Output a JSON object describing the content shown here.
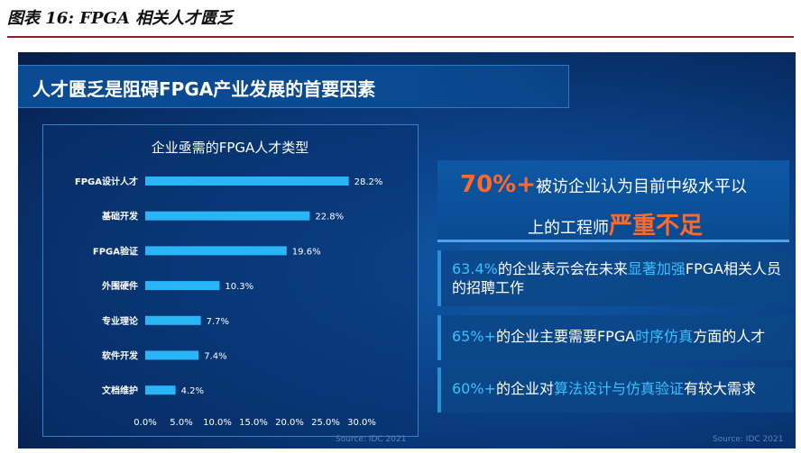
{
  "caption": "图表 16: FPGA 相关人才匮乏",
  "slide_title": "人才匮乏是阻碍FPGA产业发展的首要因素",
  "chart_data": {
    "type": "bar",
    "orientation": "horizontal",
    "title": "企业亟需的FPGA人才类型",
    "categories": [
      "FPGA设计人才",
      "基础开发",
      "FPGA验证",
      "外围硬件",
      "专业理论",
      "软件开发",
      "文档维护"
    ],
    "values": [
      28.2,
      22.8,
      19.6,
      10.3,
      7.7,
      7.4,
      4.2
    ],
    "value_labels": [
      "28.2%",
      "22.8%",
      "19.6%",
      "10.3%",
      "7.7%",
      "7.4%",
      "4.2%"
    ],
    "xlim": [
      0,
      30
    ],
    "x_ticks": [
      "0.0%",
      "5.0%",
      "10.0%",
      "15.0%",
      "20.0%",
      "25.0%",
      "30.0%"
    ],
    "bar_color": "#29b6f6",
    "grid": false
  },
  "callout_main": {
    "pct": "70%+",
    "line1": "被访企业认为目前中级水平以",
    "line2a": "上的工程师",
    "line2b": "严重不足"
  },
  "callouts": [
    {
      "pct": "63.4%",
      "a": "的企业表示会在未来",
      "hl": "显著加强",
      "b": "FPGA相关人员的招聘工作"
    },
    {
      "pct": "65%+",
      "a": "的企业主要需要FPGA",
      "hl": "时序仿真",
      "b": "方面的人才"
    },
    {
      "pct": "60%+",
      "a": "的企业对",
      "hl": "算法设计与仿真验证",
      "b": "有较大需求"
    }
  ],
  "source_left": "Source: IDC 2021",
  "source_right": "Source: IDC 2021",
  "colors": {
    "accent_red": "#ff6a2b",
    "highlight_cyan": "#36c2ff",
    "rule": "#8f1d2d"
  }
}
